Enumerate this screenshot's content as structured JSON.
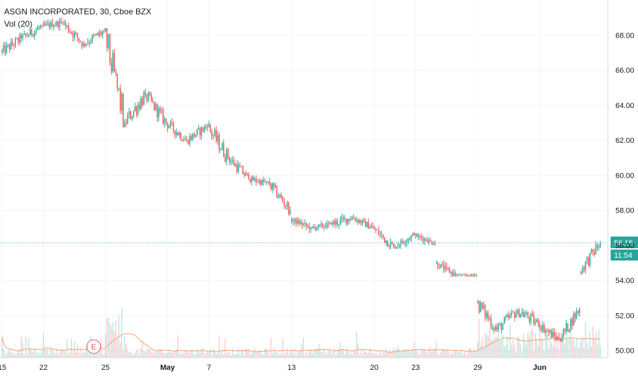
{
  "chart_data": {
    "type": "candlestick",
    "title": "ASGN INCORPORATED, 30, Cboe BZX",
    "volume_indicator_label": "Vol (20)",
    "ylim": [
      49.6,
      70.0
    ],
    "yticks": [
      50.0,
      52.0,
      54.0,
      56.0,
      58.0,
      60.0,
      62.0,
      64.0,
      66.0,
      68.0
    ],
    "xticks": [
      "15",
      "22",
      "25",
      "May",
      "7",
      "13",
      "20",
      "23",
      "29",
      "Jun"
    ],
    "last_price": 56.15,
    "last_price_label": "56.15",
    "countdown_label": "11:54",
    "earnings_marker": "E",
    "colors": {
      "up": "#26a69a",
      "down": "#ef5350",
      "price_line": "#26a69a",
      "volume_ma": "#f5a06f"
    },
    "segments": [
      {
        "label": "15",
        "start": 67.0,
        "end": 67.8,
        "lo": 66.5,
        "hi": 68.2
      },
      {
        "label": "",
        "start": 67.8,
        "end": 68.5,
        "lo": 67.4,
        "hi": 68.9
      },
      {
        "label": "22",
        "start": 68.5,
        "end": 68.7,
        "lo": 68.0,
        "hi": 69.0
      },
      {
        "label": "",
        "start": 68.7,
        "end": 67.5,
        "lo": 67.2,
        "hi": 68.9
      },
      {
        "label": "",
        "start": 67.5,
        "end": 68.2,
        "lo": 67.3,
        "hi": 68.9
      },
      {
        "label": "25",
        "start": 68.2,
        "end": 63.0,
        "lo": 62.6,
        "hi": 68.4
      },
      {
        "label": "",
        "start": 63.0,
        "end": 64.6,
        "lo": 62.5,
        "hi": 65.2
      },
      {
        "label": "",
        "start": 64.6,
        "end": 63.0,
        "lo": 62.6,
        "hi": 64.8
      },
      {
        "label": "May",
        "start": 63.0,
        "end": 62.0,
        "lo": 61.5,
        "hi": 63.3
      },
      {
        "label": "",
        "start": 62.0,
        "end": 62.8,
        "lo": 61.6,
        "hi": 63.2
      },
      {
        "label": "7",
        "start": 62.8,
        "end": 61.0,
        "lo": 60.5,
        "hi": 63.2
      },
      {
        "label": "",
        "start": 61.0,
        "end": 59.8,
        "lo": 59.5,
        "hi": 61.2
      },
      {
        "label": "",
        "start": 59.8,
        "end": 59.5,
        "lo": 59.0,
        "hi": 60.0
      },
      {
        "label": "",
        "start": 59.5,
        "end": 58.0,
        "lo": 57.7,
        "hi": 59.6
      },
      {
        "label": "13",
        "start": 57.5,
        "end": 57.0,
        "lo": 56.7,
        "hi": 57.6
      },
      {
        "label": "",
        "start": 57.0,
        "end": 57.2,
        "lo": 56.8,
        "hi": 57.6
      },
      {
        "label": "",
        "start": 57.2,
        "end": 57.6,
        "lo": 56.5,
        "hi": 57.9
      },
      {
        "label": "",
        "start": 57.6,
        "end": 57.0,
        "lo": 56.8,
        "hi": 57.9
      },
      {
        "label": "20",
        "start": 57.0,
        "end": 55.9,
        "lo": 55.6,
        "hi": 57.2
      },
      {
        "label": "",
        "start": 55.9,
        "end": 56.6,
        "lo": 55.8,
        "hi": 56.8
      },
      {
        "label": "23",
        "start": 56.6,
        "end": 56.1,
        "lo": 56.0,
        "hi": 56.7
      },
      {
        "label": "",
        "start": 55.0,
        "end": 54.3,
        "lo": 54.2,
        "hi": 55.2
      },
      {
        "label": "",
        "start": 54.3,
        "end": 54.3,
        "lo": 54.2,
        "hi": 54.4
      },
      {
        "label": "29",
        "start": 52.8,
        "end": 51.2,
        "lo": 50.4,
        "hi": 52.9
      },
      {
        "label": "",
        "start": 51.2,
        "end": 52.3,
        "lo": 50.8,
        "hi": 52.7
      },
      {
        "label": "",
        "start": 52.3,
        "end": 51.5,
        "lo": 51.0,
        "hi": 53.0
      },
      {
        "label": "Jun",
        "start": 51.5,
        "end": 50.6,
        "lo": 50.5,
        "hi": 52.0
      },
      {
        "label": "",
        "start": 50.6,
        "end": 52.4,
        "lo": 50.5,
        "hi": 52.5
      },
      {
        "label": "",
        "start": 54.5,
        "end": 56.15,
        "lo": 54.3,
        "hi": 56.3
      }
    ]
  }
}
